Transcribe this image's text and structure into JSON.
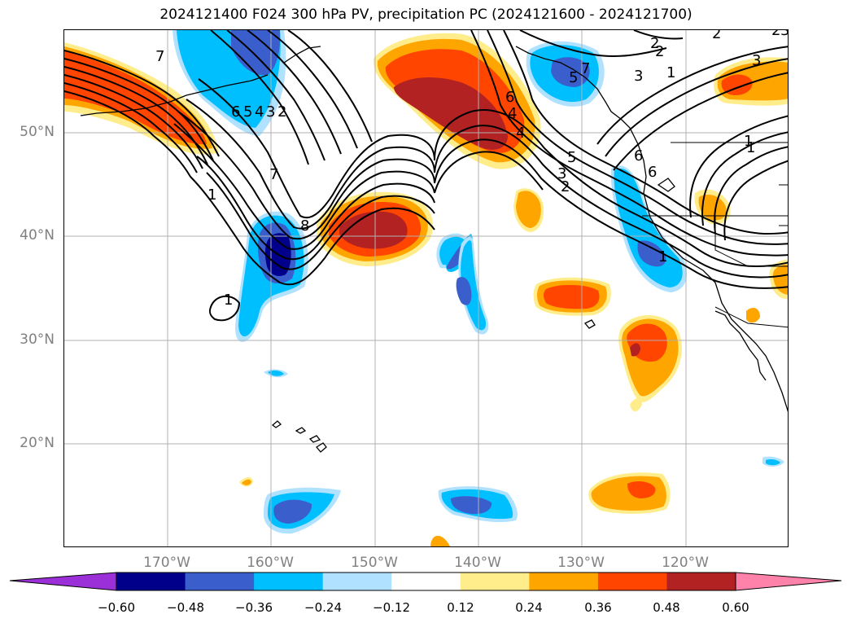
{
  "title": "2024121400 F024 300 hPa PV, precipitation PC (2024121600 - 2024121700)",
  "map": {
    "lat_range": [
      10,
      60
    ],
    "lon_range": [
      180,
      250
    ],
    "gridlines": true,
    "lat_labels": [
      "50°N",
      "40°N",
      "30°N",
      "20°N"
    ],
    "lon_labels": [
      "170°W",
      "160°W",
      "150°W",
      "140°W",
      "130°W",
      "120°W"
    ],
    "contour_field": "300 hPa PV",
    "contour_labels": [
      "7",
      "6",
      "5",
      "4",
      "3",
      "2",
      "1",
      "8",
      "7",
      "1",
      "6",
      "5",
      "4",
      "3",
      "2",
      "6",
      "2",
      "2",
      "3",
      "1",
      "1",
      "2",
      "3",
      "6",
      "5",
      "4",
      "3",
      "2",
      "1",
      "7",
      "1"
    ],
    "shaded_field": "precipitation PC"
  },
  "colorbar": {
    "tick_labels": [
      "−0.60",
      "−0.48",
      "−0.36",
      "−0.24",
      "−0.12",
      "0.12",
      "0.24",
      "0.36",
      "0.48",
      "0.60"
    ],
    "colors": [
      "#9b30d8",
      "#00008b",
      "#3a5fcd",
      "#00bfff",
      "#b0e2ff",
      "#ffffff",
      "#ffec8b",
      "#ffa500",
      "#ff4500",
      "#b22222",
      "#ff82ab"
    ]
  }
}
